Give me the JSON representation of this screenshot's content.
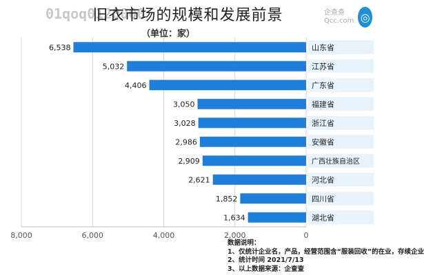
{
  "page": {
    "title": "旧衣市场的规模和发展前景",
    "ghost_title": "01qoq0120000",
    "unit": "（单位：家）"
  },
  "logo": {
    "name": "企查查",
    "domain": "Qcc.com"
  },
  "notes": {
    "heading": "数据说明：",
    "line1": "1、仅统计企业名，产品，经营范围含“服装回收”的在业，存续企业",
    "line2": "2、统计时间 2021/7/13",
    "line3": "3、以上数据来源：企查查"
  },
  "colors": {
    "bar": "#1f7fd8",
    "label_fill": "#e9f3fb",
    "grid": "#d6d6d6"
  },
  "chart_data": {
    "type": "bar",
    "orientation": "horizontal",
    "x_reversed": true,
    "categories": [
      "山东省",
      "江苏省",
      "广东省",
      "福建省",
      "浙江省",
      "安徽省",
      "广西壮族自治区",
      "河北省",
      "四川省",
      "湖北省"
    ],
    "values": [
      6538,
      5032,
      4406,
      3050,
      3028,
      2986,
      2909,
      2621,
      1852,
      1634
    ],
    "value_labels": [
      "6,538",
      "5,032",
      "4,406",
      "3,050",
      "3,028",
      "2,986",
      "2,909",
      "2,621",
      "1,852",
      "1,634"
    ],
    "xlim": [
      0,
      8000
    ],
    "xticks": [
      0,
      2000,
      4000,
      6000,
      8000
    ],
    "xtick_labels": [
      "0",
      "2,000",
      "4,000",
      "6,000",
      "8,000"
    ],
    "grid": true,
    "title": "",
    "xlabel": "",
    "ylabel": ""
  }
}
